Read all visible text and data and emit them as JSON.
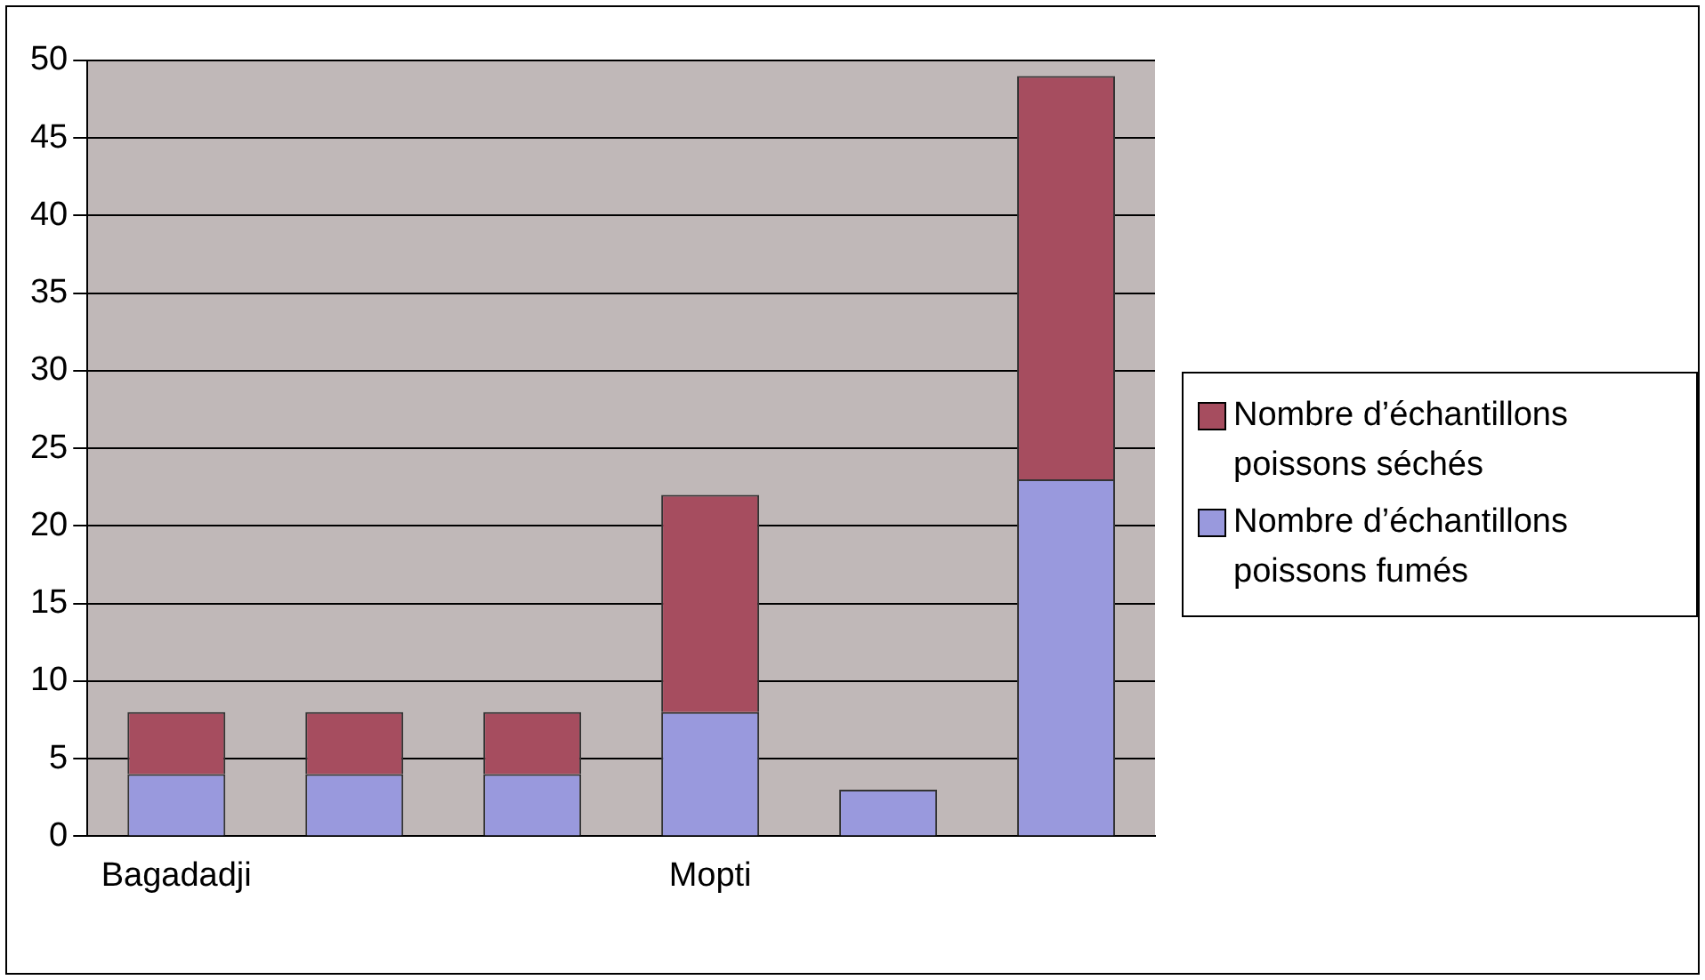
{
  "chart_data": {
    "type": "bar",
    "stacked": true,
    "categories": [
      "Bagadadji",
      null,
      null,
      "Mopti",
      null,
      null
    ],
    "series": [
      {
        "name": "Nombre d’échantillons poissons fumés",
        "color": "#9999dd",
        "values": [
          4,
          4,
          4,
          8,
          3,
          23
        ]
      },
      {
        "name": "Nombre d’échantillons poissons séchés",
        "color": "#a64d5f",
        "values": [
          4,
          4,
          4,
          14,
          0,
          26
        ]
      }
    ],
    "ylim": [
      0,
      50
    ],
    "yticks": [
      0,
      5,
      10,
      15,
      20,
      25,
      30,
      35,
      40,
      45,
      50
    ],
    "grid": "y",
    "legend": "right"
  }
}
